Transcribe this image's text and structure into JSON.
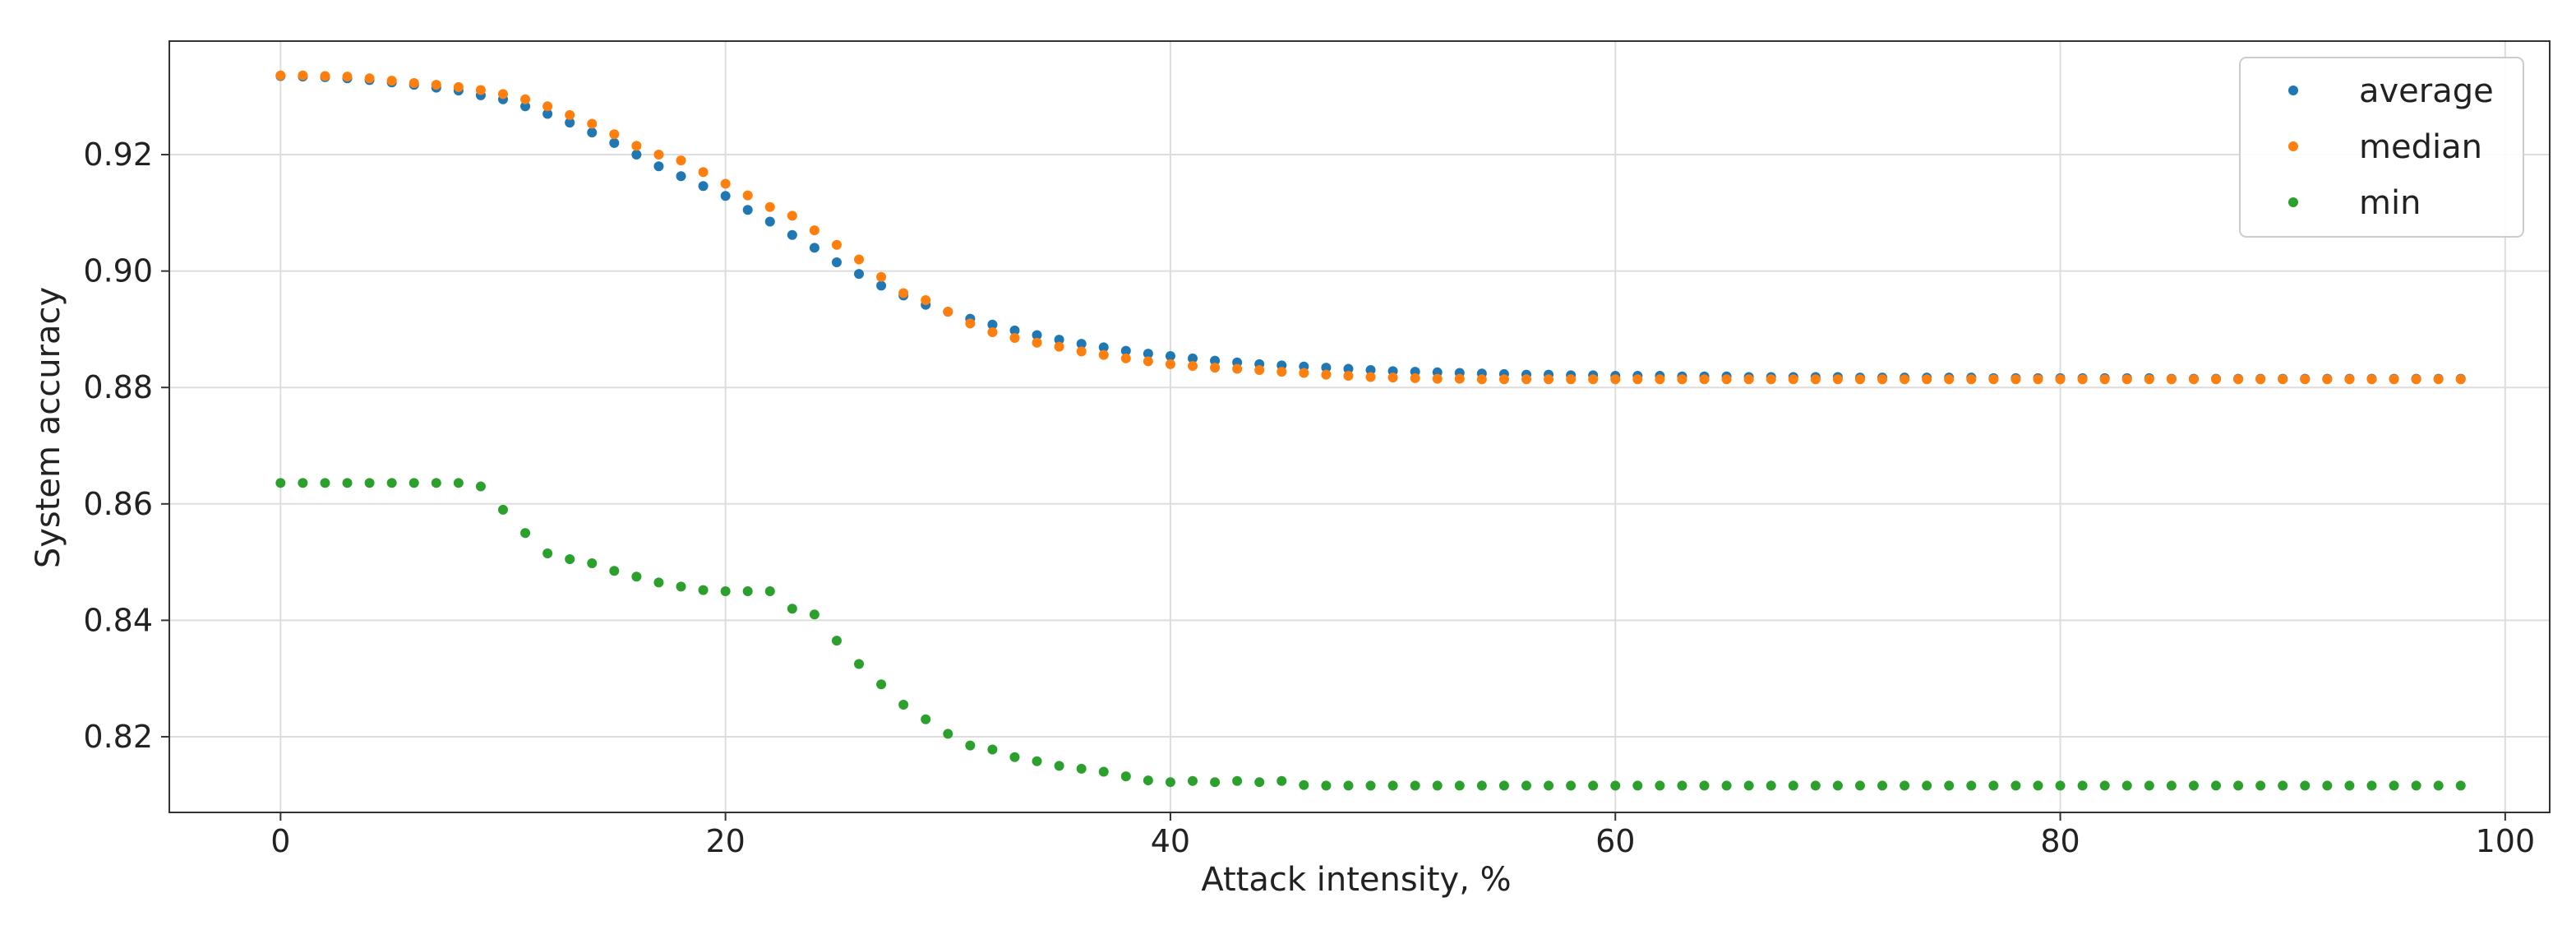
{
  "chart_data": {
    "type": "scatter",
    "xlabel": "Attack intensity, %",
    "ylabel": "System accuracy",
    "xlim": [
      -5,
      102
    ],
    "ylim": [
      0.807,
      0.9395
    ],
    "xticks": [
      0,
      20,
      40,
      60,
      80,
      100
    ],
    "yticks": [
      0.82,
      0.84,
      0.86,
      0.88,
      0.9,
      0.92
    ],
    "ytick_labels": [
      "0.82",
      "0.84",
      "0.86",
      "0.88",
      "0.90",
      "0.92"
    ],
    "grid": true,
    "legend_position": "top-right",
    "x": [
      0,
      1,
      2,
      3,
      4,
      5,
      6,
      7,
      8,
      9,
      10,
      11,
      12,
      13,
      14,
      15,
      16,
      17,
      18,
      19,
      20,
      21,
      22,
      23,
      24,
      25,
      26,
      27,
      28,
      29,
      30,
      31,
      32,
      33,
      34,
      35,
      36,
      37,
      38,
      39,
      40,
      41,
      42,
      43,
      44,
      45,
      46,
      47,
      48,
      49,
      50,
      51,
      52,
      53,
      54,
      55,
      56,
      57,
      58,
      59,
      60,
      61,
      62,
      63,
      64,
      65,
      66,
      67,
      68,
      69,
      70,
      71,
      72,
      73,
      74,
      75,
      76,
      77,
      78,
      79,
      80,
      81,
      82,
      83,
      84,
      85,
      86,
      87,
      88,
      89,
      90,
      91,
      92,
      93,
      94,
      95,
      96,
      97,
      98
    ],
    "series": [
      {
        "name": "average",
        "color": "#1f77b4",
        "values": [
          0.9335,
          0.9334,
          0.9333,
          0.9331,
          0.9328,
          0.9324,
          0.932,
          0.9315,
          0.931,
          0.9302,
          0.9295,
          0.9283,
          0.927,
          0.9255,
          0.9238,
          0.922,
          0.92,
          0.918,
          0.9163,
          0.9146,
          0.9129,
          0.9105,
          0.9085,
          0.9062,
          0.904,
          0.9015,
          0.8995,
          0.8975,
          0.8958,
          0.8942,
          0.893,
          0.8918,
          0.8908,
          0.8898,
          0.889,
          0.8882,
          0.8875,
          0.8869,
          0.8863,
          0.8858,
          0.8854,
          0.885,
          0.8846,
          0.8843,
          0.884,
          0.8838,
          0.8836,
          0.8834,
          0.8832,
          0.883,
          0.8828,
          0.8827,
          0.8826,
          0.8825,
          0.8824,
          0.8823,
          0.8822,
          0.8822,
          0.8821,
          0.8821,
          0.882,
          0.882,
          0.882,
          0.8819,
          0.8819,
          0.8819,
          0.8818,
          0.8818,
          0.8818,
          0.8818,
          0.8818,
          0.8817,
          0.8817,
          0.8817,
          0.8817,
          0.8817,
          0.8817,
          0.8816,
          0.8816,
          0.8816,
          0.8816,
          0.8816,
          0.8816,
          0.8816,
          0.8816,
          0.8815,
          0.8815,
          0.8815,
          0.8815,
          0.8815,
          0.8815,
          0.8815,
          0.8815,
          0.8815,
          0.8815,
          0.8815,
          0.8815,
          0.8815,
          0.8815
        ]
      },
      {
        "name": "median",
        "color": "#ff7f0e",
        "values": [
          0.9336,
          0.9336,
          0.9335,
          0.9334,
          0.9331,
          0.9327,
          0.9323,
          0.932,
          0.9316,
          0.9311,
          0.9304,
          0.9295,
          0.9283,
          0.9268,
          0.9253,
          0.9235,
          0.9215,
          0.92,
          0.919,
          0.917,
          0.915,
          0.913,
          0.911,
          0.9095,
          0.907,
          0.9045,
          0.902,
          0.899,
          0.8962,
          0.895,
          0.893,
          0.891,
          0.8895,
          0.8885,
          0.8877,
          0.887,
          0.8862,
          0.8856,
          0.885,
          0.8845,
          0.884,
          0.8837,
          0.8834,
          0.8832,
          0.883,
          0.8827,
          0.8825,
          0.8822,
          0.882,
          0.8818,
          0.8817,
          0.8816,
          0.8815,
          0.8815,
          0.8814,
          0.8814,
          0.8814,
          0.8814,
          0.8814,
          0.8814,
          0.8814,
          0.8814,
          0.8814,
          0.8814,
          0.8814,
          0.8814,
          0.8814,
          0.8814,
          0.8814,
          0.8814,
          0.8814,
          0.8814,
          0.8814,
          0.8814,
          0.8814,
          0.8814,
          0.8814,
          0.8814,
          0.8814,
          0.8814,
          0.8814,
          0.8814,
          0.8814,
          0.8814,
          0.8814,
          0.8814,
          0.8814,
          0.8814,
          0.8814,
          0.8814,
          0.8814,
          0.8814,
          0.8814,
          0.8814,
          0.8814,
          0.8814,
          0.8814,
          0.8814,
          0.8814
        ]
      },
      {
        "name": "min",
        "color": "#2ca02c",
        "values": [
          0.8636,
          0.8636,
          0.8636,
          0.8636,
          0.8636,
          0.8636,
          0.8636,
          0.8636,
          0.8636,
          0.863,
          0.859,
          0.855,
          0.8515,
          0.8505,
          0.8498,
          0.8485,
          0.8475,
          0.8465,
          0.8458,
          0.8452,
          0.845,
          0.845,
          0.845,
          0.842,
          0.841,
          0.8365,
          0.8325,
          0.829,
          0.8255,
          0.823,
          0.8205,
          0.8185,
          0.8178,
          0.8165,
          0.8158,
          0.815,
          0.8145,
          0.814,
          0.8132,
          0.8125,
          0.8122,
          0.8124,
          0.8122,
          0.8124,
          0.8122,
          0.8124,
          0.8117,
          0.8116,
          0.8116,
          0.8116,
          0.8116,
          0.8116,
          0.8116,
          0.8116,
          0.8116,
          0.8116,
          0.8116,
          0.8116,
          0.8116,
          0.8116,
          0.8116,
          0.8116,
          0.8116,
          0.8116,
          0.8116,
          0.8116,
          0.8116,
          0.8116,
          0.8116,
          0.8116,
          0.8116,
          0.8116,
          0.8116,
          0.8116,
          0.8116,
          0.8116,
          0.8116,
          0.8116,
          0.8116,
          0.8116,
          0.8116,
          0.8116,
          0.8116,
          0.8116,
          0.8116,
          0.8116,
          0.8116,
          0.8116,
          0.8116,
          0.8116,
          0.8116,
          0.8116,
          0.8116,
          0.8116,
          0.8116,
          0.8116,
          0.8116,
          0.8116,
          0.8116
        ]
      }
    ]
  }
}
